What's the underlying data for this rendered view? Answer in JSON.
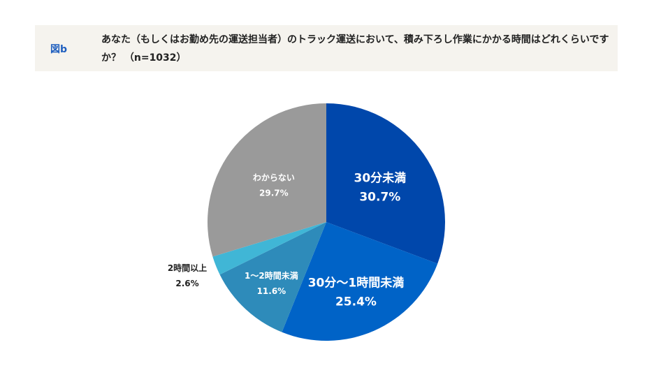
{
  "header": {
    "figure_label": "図b",
    "question": "あなた（もしくはお勤め先の運送担当者）のトラック運送において、積み下ろし作業にかかる時間はどれくらいですか？ （n=1032）"
  },
  "chart_data": {
    "type": "pie",
    "title": "あなた（もしくはお勤め先の運送担当者）のトラック運送において、積み下ろし作業にかかる時間はどれくらいですか？ （n=1032）",
    "n": 1032,
    "start_angle": "12 o'clock",
    "direction": "clockwise",
    "categories": [
      "30分未満",
      "30分〜1時間未満",
      "1〜2時間未満",
      "2時間以上",
      "わからない"
    ],
    "values": [
      30.7,
      25.4,
      11.6,
      2.6,
      29.7
    ],
    "unit": "%",
    "colors": [
      "#0047ab",
      "#0063c7",
      "#2e8bba",
      "#40b6d6",
      "#9a9a9a"
    ],
    "value_labels": [
      "30.7%",
      "25.4%",
      "11.6%",
      "2.6%",
      "29.7%"
    ]
  }
}
